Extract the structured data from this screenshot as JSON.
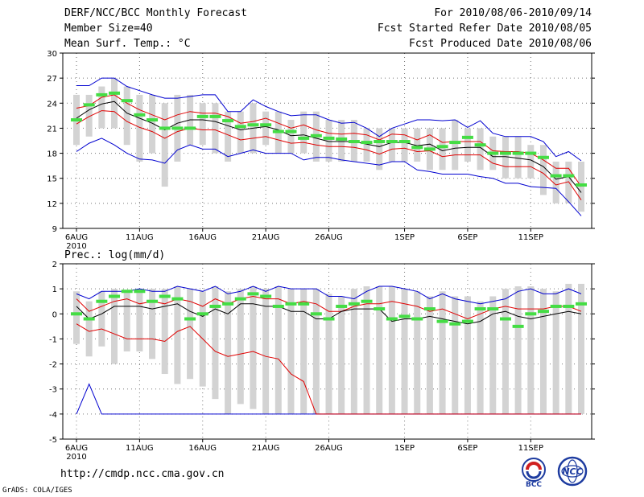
{
  "header": {
    "title": "DERF/NCC/BCC Monthly Forecast",
    "member_size": "Member Size=40",
    "period": "For 2010/08/06-2010/09/14",
    "started": "Fcst Started Refer Date 2010/08/05",
    "produced": "Fcst Produced Date 2010/08/06"
  },
  "footer": {
    "url": "http://cmdp.ncc.cma.gov.cn",
    "grads": "GrADS: COLA/IGES",
    "logo_bcc": "BCC",
    "logo_ncc": "NCC"
  },
  "colors": {
    "box": "#d3d3d3",
    "max": "#0000d0",
    "pct": "#e00000",
    "median": "#000000",
    "obs": "#44dd44"
  },
  "chart_data": [
    {
      "type": "line",
      "title": "Mean Surf. Temp.: °C",
      "ylim": [
        9,
        30
      ],
      "yticks": [
        9,
        12,
        15,
        18,
        21,
        24,
        27,
        30
      ],
      "xlim": [
        0,
        40
      ],
      "x_ticks": [
        {
          "x": 0,
          "label": "6AUG",
          "sub": "2010"
        },
        {
          "x": 5,
          "label": "11AUG"
        },
        {
          "x": 10,
          "label": "16AUG"
        },
        {
          "x": 15,
          "label": "21AUG"
        },
        {
          "x": 20,
          "label": "26AUG"
        },
        {
          "x": 26,
          "label": "1SEP"
        },
        {
          "x": 31,
          "label": "6SEP"
        },
        {
          "x": 36,
          "label": "11SEP"
        }
      ],
      "series": [
        {
          "name": "max",
          "values": [
            26.1,
            26.1,
            27,
            27,
            26,
            25.5,
            25,
            24.6,
            24.6,
            24.8,
            25,
            25,
            23,
            23,
            24.4,
            23.6,
            23,
            22.5,
            22.6,
            22.6,
            22,
            21.6,
            21.7,
            21,
            20,
            21,
            21.5,
            22,
            22,
            21.9,
            22,
            21.1,
            21.9,
            20.4,
            20,
            20,
            20,
            19.4,
            17.6,
            18.2,
            17.1
          ]
        },
        {
          "name": "p90",
          "values": [
            23.4,
            23.7,
            24.7,
            25,
            24,
            23.2,
            22.6,
            22,
            22.6,
            23,
            22.8,
            22.8,
            22.4,
            21.6,
            21.8,
            22.2,
            21.6,
            21,
            21.4,
            20.8,
            20.4,
            20.3,
            20.4,
            20.2,
            19.6,
            20.3,
            20.2,
            19.6,
            20.2,
            19.3,
            19.4,
            19.4,
            19.4,
            18.3,
            18.2,
            18.2,
            18,
            17.2,
            16.2,
            16.2,
            14
          ]
        },
        {
          "name": "median",
          "values": [
            22.2,
            23.2,
            23.9,
            24.2,
            22.8,
            22.2,
            21.6,
            20.8,
            21.6,
            22,
            22,
            21.8,
            21.3,
            20.8,
            21,
            21.2,
            20.8,
            20.1,
            20.2,
            19.8,
            19.4,
            19.4,
            19.4,
            19.1,
            18.8,
            19.3,
            19.3,
            18.9,
            19.1,
            18.3,
            18.6,
            18.7,
            18.7,
            17.6,
            17.6,
            17.4,
            17.2,
            16.4,
            14.9,
            15.2,
            13.3
          ]
        },
        {
          "name": "p10",
          "values": [
            21.5,
            22.4,
            23.1,
            23,
            21.8,
            21.1,
            20.6,
            19.8,
            20.6,
            21,
            20.8,
            20.8,
            20.2,
            19.6,
            19.8,
            20,
            19.6,
            19.2,
            19.3,
            19,
            18.8,
            18.8,
            18.7,
            18.4,
            17.9,
            18.5,
            18.6,
            18.2,
            18.3,
            17.6,
            17.8,
            17.8,
            17.8,
            16.8,
            16.4,
            16.4,
            16.4,
            15.6,
            14.2,
            14.6,
            12.4
          ]
        },
        {
          "name": "min",
          "values": [
            18.2,
            19.2,
            19.8,
            19,
            18,
            17.3,
            17.2,
            16.8,
            18.4,
            19,
            18.5,
            18.5,
            17.6,
            18,
            18.4,
            18,
            18,
            18,
            17.2,
            17.5,
            17.5,
            17.2,
            17,
            16.8,
            16.6,
            17,
            17,
            16,
            15.8,
            15.5,
            15.5,
            15.5,
            15.2,
            15,
            14.4,
            14.4,
            14,
            13.9,
            13.8,
            12.2,
            10.5
          ]
        },
        {
          "name": "box_low",
          "values": [
            19,
            20,
            21,
            21,
            19,
            17,
            18,
            14,
            17,
            19,
            19,
            18,
            17,
            18,
            18,
            19,
            18,
            18,
            18,
            17,
            17,
            17,
            17,
            17,
            16,
            17,
            17,
            17,
            16,
            16,
            16,
            17,
            16,
            16,
            15,
            15,
            15,
            13,
            12,
            12,
            11
          ]
        },
        {
          "name": "box_high",
          "values": [
            25,
            25,
            26,
            27,
            26,
            25,
            25,
            24,
            25,
            25,
            24,
            24,
            23,
            23,
            24,
            23,
            23,
            22,
            23,
            23,
            22,
            22,
            22,
            21,
            21,
            21,
            21,
            21,
            21,
            21,
            22,
            21,
            21,
            20,
            20,
            20,
            19,
            19,
            17,
            17,
            17
          ]
        },
        {
          "name": "obs",
          "values": [
            22,
            23.8,
            25,
            25.2,
            24.3,
            22.6,
            22,
            21,
            21,
            21,
            22.4,
            22.4,
            21.9,
            21.2,
            21.4,
            21.4,
            20.6,
            20.6,
            19.8,
            20.1,
            19.8,
            19.7,
            19.4,
            19.3,
            19.4,
            19.4,
            19.4,
            18.7,
            18.5,
            18.8,
            19.3,
            19.9,
            19,
            18,
            18,
            18,
            18,
            17.5,
            15.3,
            15.3,
            14.2
          ]
        }
      ]
    },
    {
      "type": "line",
      "title": "Prec.: log(mm/d)",
      "ylim": [
        -5,
        2
      ],
      "yticks": [
        -5,
        -4,
        -3,
        -2,
        -1,
        0,
        1,
        2
      ],
      "xlim": [
        0,
        40
      ],
      "x_ticks": [
        {
          "x": 0,
          "label": "6AUG",
          "sub": "2010"
        },
        {
          "x": 5,
          "label": "11AUG"
        },
        {
          "x": 10,
          "label": "16AUG"
        },
        {
          "x": 15,
          "label": "21AUG"
        },
        {
          "x": 20,
          "label": "26AUG"
        },
        {
          "x": 26,
          "label": "1SEP"
        },
        {
          "x": 31,
          "label": "6SEP"
        },
        {
          "x": 36,
          "label": "11SEP"
        }
      ],
      "series": [
        {
          "name": "max",
          "values": [
            0.8,
            0.6,
            0.9,
            0.9,
            0.9,
            1,
            0.9,
            0.9,
            1.1,
            1,
            0.9,
            1.1,
            0.8,
            0.9,
            1.1,
            0.9,
            1.1,
            1,
            1,
            1,
            0.7,
            0.7,
            0.6,
            0.9,
            1.1,
            1.1,
            1,
            0.9,
            0.6,
            0.8,
            0.6,
            0.5,
            0.4,
            0.5,
            0.6,
            0.9,
            1,
            0.8,
            0.8,
            1,
            0.8
          ]
        },
        {
          "name": "p90",
          "values": [
            0.6,
            0.1,
            0.3,
            0.5,
            0.6,
            0.4,
            0.5,
            0.4,
            0.6,
            0.5,
            0.3,
            0.6,
            0.4,
            0.6,
            0.7,
            0.6,
            0.6,
            0.4,
            0.5,
            0.4,
            0.1,
            0.1,
            0.3,
            0.4,
            0.4,
            0.5,
            0.4,
            0.3,
            0.1,
            0.2,
            0,
            -0.2,
            0,
            0.2,
            0.3,
            0.2,
            0.2,
            0.2,
            0.3,
            0.3,
            0.1
          ]
        },
        {
          "name": "median",
          "values": [
            0.3,
            -0.2,
            0,
            0.3,
            0.3,
            0.3,
            0.2,
            0.3,
            0.4,
            0.1,
            -0.1,
            0.2,
            0,
            0.4,
            0.4,
            0.3,
            0.3,
            0.1,
            0.1,
            -0.2,
            -0.2,
            0.1,
            0.2,
            0.2,
            0.2,
            -0.3,
            -0.2,
            -0.2,
            -0.1,
            -0.2,
            -0.3,
            -0.4,
            -0.3,
            0,
            0.1,
            -0.1,
            -0.2,
            -0.1,
            0,
            0.1,
            0
          ]
        },
        {
          "name": "p10",
          "values": [
            -0.4,
            -0.7,
            -0.6,
            -0.8,
            -1,
            -1,
            -1,
            -1.1,
            -0.7,
            -0.5,
            -1,
            -1.5,
            -1.7,
            -1.6,
            -1.5,
            -1.7,
            -1.8,
            -2.4,
            -2.7,
            -4,
            -4,
            -4,
            -4,
            -4,
            -4,
            -4,
            -4,
            -4,
            -4,
            -4,
            -4,
            -4,
            -4,
            -4,
            -4,
            -4,
            -4,
            -4,
            -4,
            -4,
            -4
          ]
        },
        {
          "name": "min",
          "values": [
            -4,
            -2.8,
            -4,
            -4,
            -4,
            -4,
            -4,
            -4,
            -4,
            -4,
            -4,
            -4,
            -4,
            -4,
            -4,
            -4,
            -4,
            -4,
            -4,
            -4,
            -4,
            -4,
            -4,
            -4,
            -4,
            -4,
            -4,
            -4,
            -4,
            -4,
            -4,
            -4,
            -4,
            -4,
            -4,
            -4,
            -4,
            -4,
            -4,
            -4,
            -4
          ]
        },
        {
          "name": "box_low",
          "values": [
            -1.2,
            -1.7,
            -1.3,
            -2,
            -1.5,
            -1.5,
            -1.8,
            -2.4,
            -2.8,
            -2.6,
            -2.9,
            -3.4,
            -4,
            -3.6,
            -3.8,
            -4,
            -4,
            -4,
            -4,
            -4,
            -4,
            -4,
            -4,
            -4,
            -4,
            -4,
            -4,
            -4,
            -4,
            -4,
            -4,
            -4,
            -4,
            -4,
            -4,
            -4,
            -4,
            -4,
            -4,
            -4,
            -4
          ]
        },
        {
          "name": "box_high",
          "values": [
            0.9,
            0.5,
            0.9,
            1,
            0.9,
            1,
            1,
            1,
            1.1,
            1,
            0.9,
            1.1,
            0.9,
            1,
            1.1,
            1,
            1.1,
            1,
            1,
            1,
            0.8,
            0.7,
            1,
            1.1,
            1.1,
            1.1,
            1,
            0.9,
            0.7,
            0.9,
            0.7,
            0.7,
            0.5,
            0.7,
            1,
            1.1,
            1.1,
            1,
            0.9,
            1.2,
            1.2
          ]
        },
        {
          "name": "obs",
          "values": [
            0,
            -0.2,
            0.5,
            0.7,
            0.9,
            0.9,
            0.5,
            0.7,
            0.6,
            -0.2,
            0,
            0.3,
            0.4,
            0.6,
            0.8,
            0.7,
            0.3,
            0.4,
            0.4,
            0,
            -0.2,
            0.3,
            0.4,
            0.5,
            0.2,
            -0.2,
            -0.1,
            -0.2,
            0.2,
            -0.3,
            -0.4,
            -0.3,
            0.2,
            0.2,
            -0.2,
            -0.5,
            0,
            0.1,
            0.3,
            0.3,
            0.4
          ]
        }
      ]
    }
  ]
}
